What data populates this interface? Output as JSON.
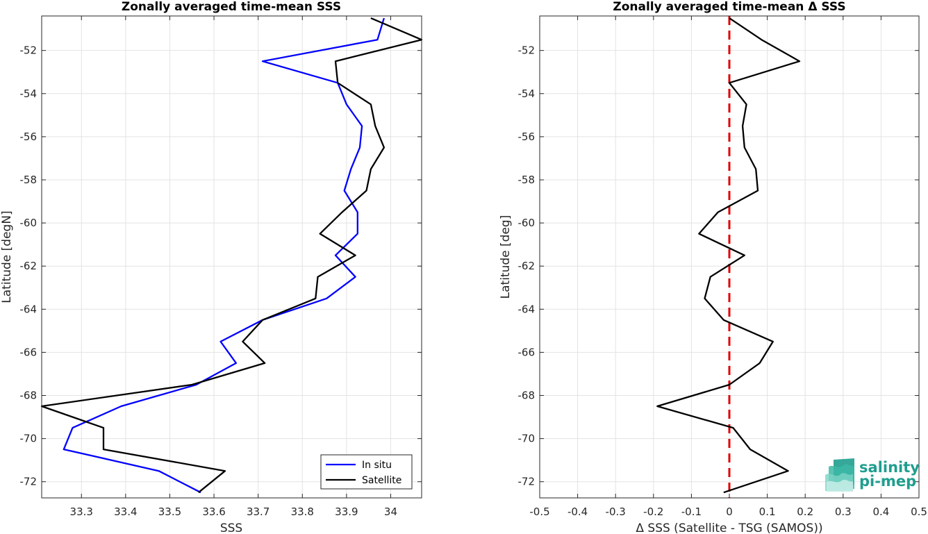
{
  "chart_data": [
    {
      "type": "line",
      "title": "Zonally averaged time-mean SSS",
      "xlabel": "SSS",
      "ylabel": "Latitude [degN]",
      "xlim": [
        33.21,
        34.07
      ],
      "ylim": [
        -72.75,
        -50.4
      ],
      "xticks": [
        33.3,
        33.4,
        33.5,
        33.6,
        33.7,
        33.8,
        33.9,
        34
      ],
      "xtick_labels": [
        "33.3",
        "33.4",
        "33.5",
        "33.6",
        "33.7",
        "33.8",
        "33.9",
        "34"
      ],
      "yticks": [
        -72,
        -70,
        -68,
        -66,
        -64,
        -62,
        -60,
        -58,
        -56,
        -54,
        -52
      ],
      "ytick_labels": [
        "-72",
        "-70",
        "-68",
        "-66",
        "-64",
        "-62",
        "-60",
        "-58",
        "-56",
        "-54",
        "-52"
      ],
      "grid": true,
      "legend": "bottom-right",
      "series": [
        {
          "name": "In situ",
          "color": "#0000ff",
          "x": [
            33.985,
            33.97,
            33.71,
            33.88,
            33.9,
            33.935,
            33.93,
            33.91,
            33.895,
            33.925,
            33.925,
            33.875,
            33.92,
            33.855,
            33.71,
            33.615,
            33.65,
            33.56,
            33.39,
            33.28,
            33.26,
            33.475,
            33.57
          ],
          "y": [
            -50.5,
            -51.5,
            -52.5,
            -53.5,
            -54.5,
            -55.5,
            -56.5,
            -57.5,
            -58.5,
            -59.5,
            -60.5,
            -61.5,
            -62.5,
            -63.5,
            -64.5,
            -65.5,
            -66.5,
            -67.5,
            -68.5,
            -69.5,
            -70.5,
            -71.5,
            -72.5
          ]
        },
        {
          "name": "Satellite",
          "color": "#000000",
          "x": [
            33.955,
            34.07,
            33.875,
            33.88,
            33.955,
            33.965,
            33.985,
            33.955,
            33.945,
            33.89,
            33.84,
            33.92,
            33.835,
            33.83,
            33.71,
            33.665,
            33.715,
            33.55,
            33.21,
            33.35,
            33.35,
            33.625,
            33.565
          ],
          "y": [
            -50.5,
            -51.5,
            -52.5,
            -53.5,
            -54.5,
            -55.5,
            -56.5,
            -57.5,
            -58.5,
            -59.5,
            -60.5,
            -61.5,
            -62.5,
            -63.5,
            -64.5,
            -65.5,
            -66.5,
            -67.5,
            -68.5,
            -69.5,
            -70.5,
            -71.5,
            -72.5
          ]
        }
      ]
    },
    {
      "type": "line",
      "title": "Zonally averaged time-mean Δ SSS",
      "xlabel": "Δ SSS (Satellite - TSG (SAMOS))",
      "ylabel": "Latitude [deg]",
      "xlim": [
        -0.5,
        0.5
      ],
      "ylim": [
        -72.75,
        -50.4
      ],
      "xticks": [
        -0.5,
        -0.4,
        -0.3,
        -0.2,
        -0.1,
        0,
        0.1,
        0.2,
        0.3,
        0.4,
        0.5
      ],
      "xtick_labels": [
        "-0.5",
        "-0.4",
        "-0.3",
        "-0.2",
        "-0.1",
        "0",
        "0.1",
        "0.2",
        "0.3",
        "0.4",
        "0.5"
      ],
      "yticks": [
        -72,
        -70,
        -68,
        -66,
        -64,
        -62,
        -60,
        -58,
        -56,
        -54,
        -52
      ],
      "ytick_labels": [
        "-72",
        "-70",
        "-68",
        "-66",
        "-64",
        "-62",
        "-60",
        "-58",
        "-56",
        "-54",
        "-52"
      ],
      "grid": true,
      "reference_line": {
        "x": 0,
        "color": "#e00000",
        "style": "dashed"
      },
      "series": [
        {
          "color": "#000000",
          "x": [
            0,
            0.085,
            0.185,
            0,
            0.045,
            0.035,
            0.04,
            0.07,
            0.075,
            -0.03,
            -0.08,
            0.04,
            -0.05,
            -0.065,
            -0.015,
            0.115,
            0.08,
            0,
            -0.19,
            0.01,
            0.055,
            0.155,
            -0.015
          ],
          "y": [
            -50.5,
            -51.5,
            -52.5,
            -53.5,
            -54.5,
            -55.5,
            -56.5,
            -57.5,
            -58.5,
            -59.5,
            -60.5,
            -61.5,
            -62.5,
            -63.5,
            -64.5,
            -65.5,
            -66.5,
            -67.5,
            -68.5,
            -69.5,
            -70.5,
            -71.5,
            -72.5
          ]
        }
      ]
    }
  ],
  "logo": {
    "line1": "salinity",
    "line2": "pi-mep",
    "color": "#1f9e8e"
  }
}
